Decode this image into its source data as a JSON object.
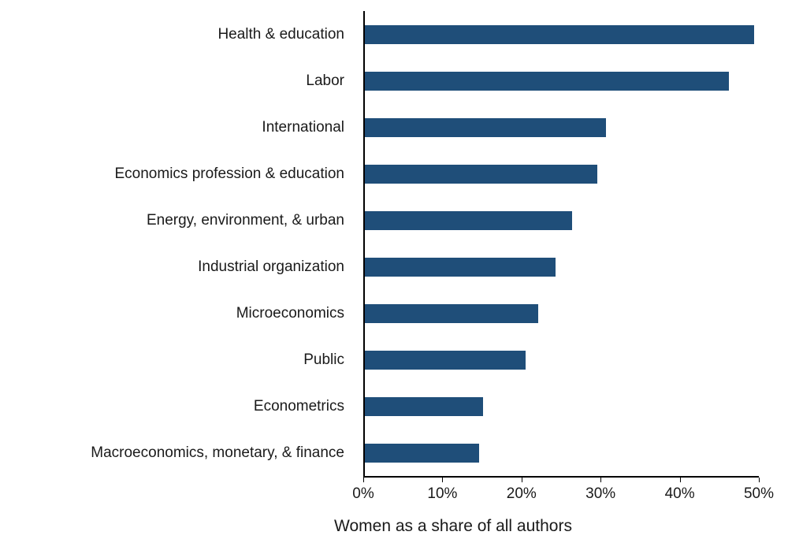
{
  "chart_data": {
    "type": "bar",
    "orientation": "horizontal",
    "title": "",
    "xlabel": "Women as a share of all authors",
    "ylabel": "",
    "categories": [
      "Health & education",
      "Labor",
      "International",
      "Economics profession & education",
      "Energy, environment, & urban",
      "Industrial organization",
      "Microeconomics",
      "Public",
      "Econometrics",
      "Macroeconomics, monetary, & finance"
    ],
    "values": [
      46,
      43,
      28.5,
      27.5,
      24.5,
      22.5,
      20.5,
      19,
      14,
      13.5
    ],
    "xlim": [
      0,
      50
    ],
    "x_ticks": [
      "0%",
      "10%",
      "20%",
      "30%",
      "40%",
      "50%"
    ],
    "x_tick_values": [
      0,
      10,
      20,
      30,
      40,
      50
    ],
    "bar_color": "#1F4E79",
    "axis_color": "#000000",
    "grid": false,
    "legend": "none"
  }
}
